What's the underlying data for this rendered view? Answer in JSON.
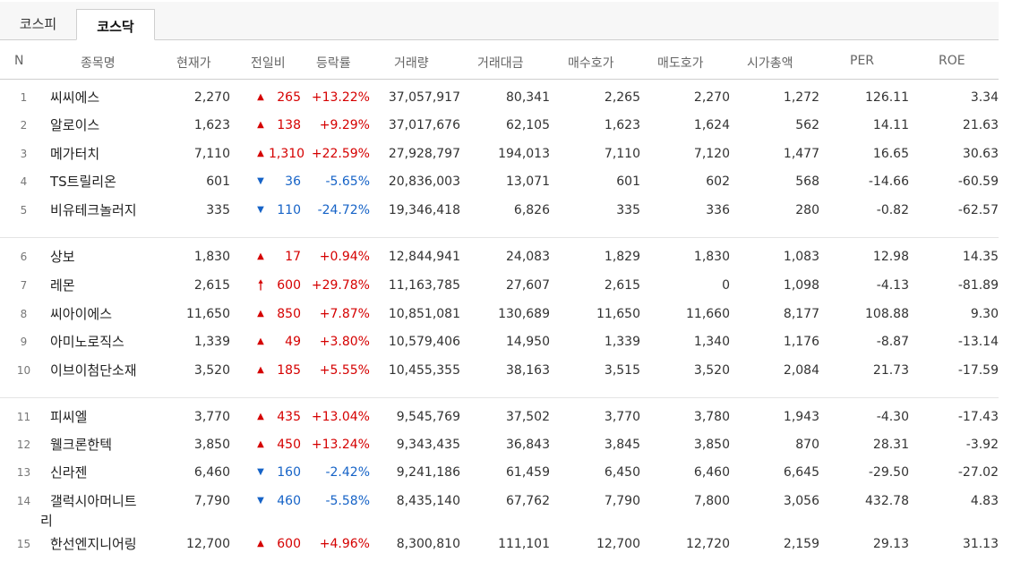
{
  "tabs": [
    {
      "label": "코스피"
    },
    {
      "label": "코스닥"
    }
  ],
  "headers": {
    "n": "N",
    "name": "종목명",
    "price": "현재가",
    "change": "전일비",
    "rate": "등락률",
    "volume": "거래량",
    "amount": "거래대금",
    "bid": "매수호가",
    "ask": "매도호가",
    "cap": "시가총액",
    "per": "PER",
    "roe": "ROE"
  },
  "rows": [
    {
      "n": "1",
      "name": "씨씨에스",
      "price": "2,270",
      "dir": "up",
      "arrow": "▲",
      "change": "265",
      "rate": "+13.22%",
      "volume": "37,057,917",
      "amount": "80,341",
      "bid": "2,265",
      "ask": "2,270",
      "cap": "1,272",
      "per": "126.11",
      "roe": "3.34"
    },
    {
      "n": "2",
      "name": "알로이스",
      "price": "1,623",
      "dir": "up",
      "arrow": "▲",
      "change": "138",
      "rate": "+9.29%",
      "volume": "37,017,676",
      "amount": "62,105",
      "bid": "1,623",
      "ask": "1,624",
      "cap": "562",
      "per": "14.11",
      "roe": "21.63"
    },
    {
      "n": "3",
      "name": "메가터치",
      "price": "7,110",
      "dir": "up",
      "arrow": "▲",
      "change": "1,310",
      "rate": "+22.59%",
      "volume": "27,928,797",
      "amount": "194,013",
      "bid": "7,110",
      "ask": "7,120",
      "cap": "1,477",
      "per": "16.65",
      "roe": "30.63"
    },
    {
      "n": "4",
      "name": "TS트릴리온",
      "price": "601",
      "dir": "down",
      "arrow": "▼",
      "change": "36",
      "rate": "-5.65%",
      "volume": "20,836,003",
      "amount": "13,071",
      "bid": "601",
      "ask": "602",
      "cap": "568",
      "per": "-14.66",
      "roe": "-60.59"
    },
    {
      "n": "5",
      "name": "비유테크놀러지",
      "price": "335",
      "dir": "down",
      "arrow": "▼",
      "change": "110",
      "rate": "-24.72%",
      "volume": "19,346,418",
      "amount": "6,826",
      "bid": "335",
      "ask": "336",
      "cap": "280",
      "per": "-0.82",
      "roe": "-62.57"
    },
    {
      "n": "6",
      "name": "상보",
      "price": "1,830",
      "dir": "up",
      "arrow": "▲",
      "change": "17",
      "rate": "+0.94%",
      "volume": "12,844,941",
      "amount": "24,083",
      "bid": "1,829",
      "ask": "1,830",
      "cap": "1,083",
      "per": "12.98",
      "roe": "14.35"
    },
    {
      "n": "7",
      "name": "레몬",
      "price": "2,615",
      "dir": "up",
      "arrow": "🠕",
      "change": "600",
      "rate": "+29.78%",
      "volume": "11,163,785",
      "amount": "27,607",
      "bid": "2,615",
      "ask": "0",
      "cap": "1,098",
      "per": "-4.13",
      "roe": "-81.89"
    },
    {
      "n": "8",
      "name": "씨아이에스",
      "price": "11,650",
      "dir": "up",
      "arrow": "▲",
      "change": "850",
      "rate": "+7.87%",
      "volume": "10,851,081",
      "amount": "130,689",
      "bid": "11,650",
      "ask": "11,660",
      "cap": "8,177",
      "per": "108.88",
      "roe": "9.30"
    },
    {
      "n": "9",
      "name": "아미노로직스",
      "price": "1,339",
      "dir": "up",
      "arrow": "▲",
      "change": "49",
      "rate": "+3.80%",
      "volume": "10,579,406",
      "amount": "14,950",
      "bid": "1,339",
      "ask": "1,340",
      "cap": "1,176",
      "per": "-8.87",
      "roe": "-13.14"
    },
    {
      "n": "10",
      "name": "이브이첨단소재",
      "price": "3,520",
      "dir": "up",
      "arrow": "▲",
      "change": "185",
      "rate": "+5.55%",
      "volume": "10,455,355",
      "amount": "38,163",
      "bid": "3,515",
      "ask": "3,520",
      "cap": "2,084",
      "per": "21.73",
      "roe": "-17.59"
    },
    {
      "n": "11",
      "name": "피씨엘",
      "price": "3,770",
      "dir": "up",
      "arrow": "▲",
      "change": "435",
      "rate": "+13.04%",
      "volume": "9,545,769",
      "amount": "37,502",
      "bid": "3,770",
      "ask": "3,780",
      "cap": "1,943",
      "per": "-4.30",
      "roe": "-17.43"
    },
    {
      "n": "12",
      "name": "웰크론한텍",
      "price": "3,850",
      "dir": "up",
      "arrow": "▲",
      "change": "450",
      "rate": "+13.24%",
      "volume": "9,343,435",
      "amount": "36,843",
      "bid": "3,845",
      "ask": "3,850",
      "cap": "870",
      "per": "28.31",
      "roe": "-3.92"
    },
    {
      "n": "13",
      "name": "신라젠",
      "price": "6,460",
      "dir": "down",
      "arrow": "▼",
      "change": "160",
      "rate": "-2.42%",
      "volume": "9,241,186",
      "amount": "61,459",
      "bid": "6,450",
      "ask": "6,460",
      "cap": "6,645",
      "per": "-29.50",
      "roe": "-27.02"
    },
    {
      "n": "14",
      "name": "갤럭시아머니트",
      "price": "7,790",
      "dir": "down",
      "arrow": "▼",
      "change": "460",
      "rate": "-5.58%",
      "volume": "8,435,140",
      "amount": "67,762",
      "bid": "7,790",
      "ask": "7,800",
      "cap": "3,056",
      "per": "432.78",
      "roe": "4.83"
    },
    {
      "n": "15",
      "name": "한선엔지니어링",
      "price": "12,700",
      "dir": "up",
      "arrow": "▲",
      "change": "600",
      "rate": "+4.96%",
      "volume": "8,300,810",
      "amount": "111,101",
      "bid": "12,700",
      "ask": "12,720",
      "cap": "2,159",
      "per": "29.13",
      "roe": "31.13"
    }
  ],
  "row14_wrap": "리"
}
